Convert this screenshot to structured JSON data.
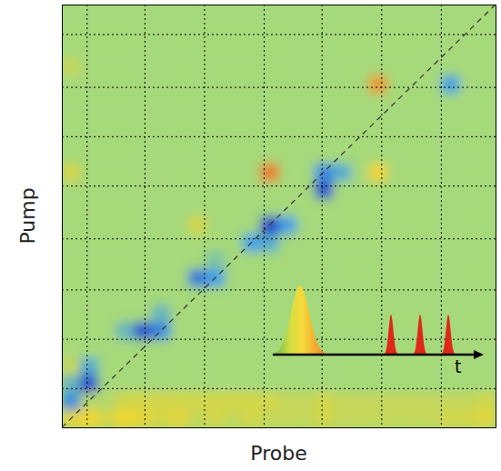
{
  "chart_data": {
    "type": "heatmap",
    "x_label": "Probe",
    "y_label": "Pump",
    "annotations": [
      "t"
    ],
    "xlim": [
      0,
      24
    ],
    "ylim": [
      0,
      24
    ],
    "xticks": [
      1.4,
      4.6,
      7.9,
      11.2,
      14.4,
      17.7,
      21
    ],
    "yticks": [
      2.2,
      5,
      7.8,
      10.7,
      13.7,
      16.5,
      19.3,
      22.3
    ],
    "grid": true,
    "tick_labels": false,
    "zlim": [
      -1,
      1
    ],
    "cells": [
      [
        0.4,
        0.5,
        0.3,
        0.5,
        0.4,
        0.3,
        0.4,
        0.2,
        0.3,
        0.2,
        0.3,
        0.2,
        0.2,
        0.2,
        0.3,
        0.2,
        0.2,
        0.2,
        0.2,
        0.2,
        0.2,
        0.3,
        0.3,
        0.4
      ],
      [
        -0.6,
        0.1,
        0.1,
        0.3,
        0.3,
        0.3,
        0.3,
        0.3,
        0.3,
        0.3,
        0.3,
        0.3,
        0.2,
        0.2,
        0.3,
        0.2,
        0.2,
        0.2,
        0.2,
        0.2,
        0.2,
        0.2,
        0.2,
        0.3
      ],
      [
        -0.3,
        -0.9,
        0,
        0,
        0,
        0,
        0,
        0,
        0,
        0,
        0,
        0,
        0,
        0,
        0,
        0,
        0,
        0,
        0,
        0,
        0,
        0,
        0,
        0
      ],
      [
        0.2,
        -0.4,
        0,
        0,
        0,
        0,
        0,
        0,
        0,
        0,
        0,
        0,
        0,
        0,
        0,
        0,
        0,
        0,
        0,
        0,
        0,
        0,
        0,
        0
      ],
      [
        0,
        0,
        0,
        0,
        0,
        0,
        0,
        0,
        0,
        0,
        0,
        0,
        0,
        0,
        0,
        0,
        0,
        0,
        0,
        0,
        0,
        0,
        0,
        0
      ],
      [
        0,
        0,
        0,
        -0.3,
        -0.9,
        -0.6,
        0,
        0,
        0,
        0,
        0,
        0,
        0,
        0,
        0,
        0,
        0,
        0,
        0,
        0,
        0,
        0,
        0,
        0
      ],
      [
        0,
        0,
        0,
        0,
        0,
        -0.3,
        0,
        0,
        0,
        0,
        0,
        0,
        0,
        0,
        0,
        0,
        0,
        0,
        0,
        0,
        0,
        0,
        0,
        0
      ],
      [
        0,
        0,
        0,
        0,
        0,
        0,
        0,
        0,
        0,
        0,
        0,
        0,
        0,
        0,
        0,
        0,
        0,
        0,
        0,
        0,
        0,
        0,
        0,
        0
      ],
      [
        0,
        0,
        0,
        0,
        0,
        0,
        0,
        -0.7,
        -0.5,
        0,
        0,
        0,
        0,
        0,
        0,
        0,
        0,
        0,
        0,
        0,
        0,
        0,
        0,
        0
      ],
      [
        0,
        0,
        0,
        0,
        0,
        0,
        0,
        0,
        -0.2,
        0,
        0,
        0,
        0,
        0,
        0,
        0,
        0,
        0,
        0,
        0,
        0,
        0,
        0,
        0
      ],
      [
        0,
        0,
        0,
        0,
        0,
        0,
        0,
        0,
        0,
        0,
        -0.5,
        -0.4,
        0,
        0,
        0,
        0,
        0,
        0,
        0,
        0,
        0,
        0,
        0,
        0
      ],
      [
        0,
        0,
        0,
        0,
        0,
        0,
        0,
        0.3,
        0,
        0,
        0,
        -1.0,
        -0.5,
        0,
        0,
        0,
        0,
        0,
        0,
        0,
        0,
        0,
        0,
        0
      ],
      [
        0,
        0,
        0,
        0,
        0,
        0,
        0,
        0,
        0,
        0,
        0,
        0,
        0,
        0,
        0,
        0,
        0,
        0,
        0,
        0,
        0,
        0,
        0,
        0
      ],
      [
        0,
        0,
        0,
        0,
        0,
        0,
        0,
        0,
        0,
        0,
        0,
        0,
        0,
        0,
        -0.9,
        0,
        0,
        0,
        0,
        0,
        0,
        0,
        0,
        0
      ],
      [
        0.3,
        0,
        0,
        0,
        0,
        0,
        0,
        0,
        0,
        0,
        0,
        0.8,
        0,
        0,
        -0.6,
        -0.4,
        0,
        0.5,
        0,
        0,
        0,
        0,
        0,
        0
      ],
      [
        0,
        0,
        0,
        0,
        0,
        0,
        0,
        0,
        0,
        0,
        0,
        0,
        0,
        0,
        0,
        0,
        0,
        0,
        0,
        0,
        0,
        0,
        0,
        0
      ],
      [
        0,
        0,
        0,
        0,
        0,
        0,
        0,
        0,
        0,
        0,
        0,
        0,
        0,
        0,
        0,
        0,
        0,
        0,
        0,
        0,
        0,
        0,
        0,
        0
      ],
      [
        0,
        0,
        0,
        0,
        0,
        0,
        0,
        0,
        0,
        0,
        0,
        0,
        0,
        0,
        0,
        0,
        0,
        0,
        0,
        0,
        0,
        0,
        0,
        0
      ],
      [
        0,
        0,
        0,
        0,
        0,
        0,
        0,
        0,
        0,
        0,
        0,
        0,
        0,
        0,
        0,
        0,
        0,
        0,
        0,
        0,
        0,
        0,
        0,
        0
      ],
      [
        0,
        0,
        0,
        0,
        0,
        0,
        0,
        0,
        0,
        0,
        0,
        0,
        0,
        0,
        0,
        0,
        0,
        0.7,
        0,
        0,
        0,
        -0.5,
        0,
        0
      ],
      [
        0.2,
        0,
        0,
        0,
        0,
        0,
        0,
        0,
        0,
        0,
        0,
        0,
        0,
        0,
        0,
        0,
        0,
        0,
        0,
        0,
        0,
        0,
        0,
        0
      ],
      [
        0,
        0,
        0,
        0,
        0,
        0,
        0,
        0,
        0,
        0,
        0,
        0,
        0,
        0,
        0,
        0,
        0,
        0,
        0,
        0,
        0,
        0,
        0,
        0
      ],
      [
        0,
        0,
        0,
        0,
        0,
        0,
        0,
        0,
        0,
        0,
        0,
        0,
        0,
        0,
        0,
        0,
        0,
        0,
        0,
        0,
        0,
        0,
        0,
        0
      ],
      [
        0,
        0,
        0,
        0,
        0,
        0,
        0,
        0,
        0,
        0,
        0,
        0,
        0,
        0,
        0,
        0,
        0,
        0,
        0,
        0,
        0,
        0,
        0,
        0
      ]
    ]
  }
}
